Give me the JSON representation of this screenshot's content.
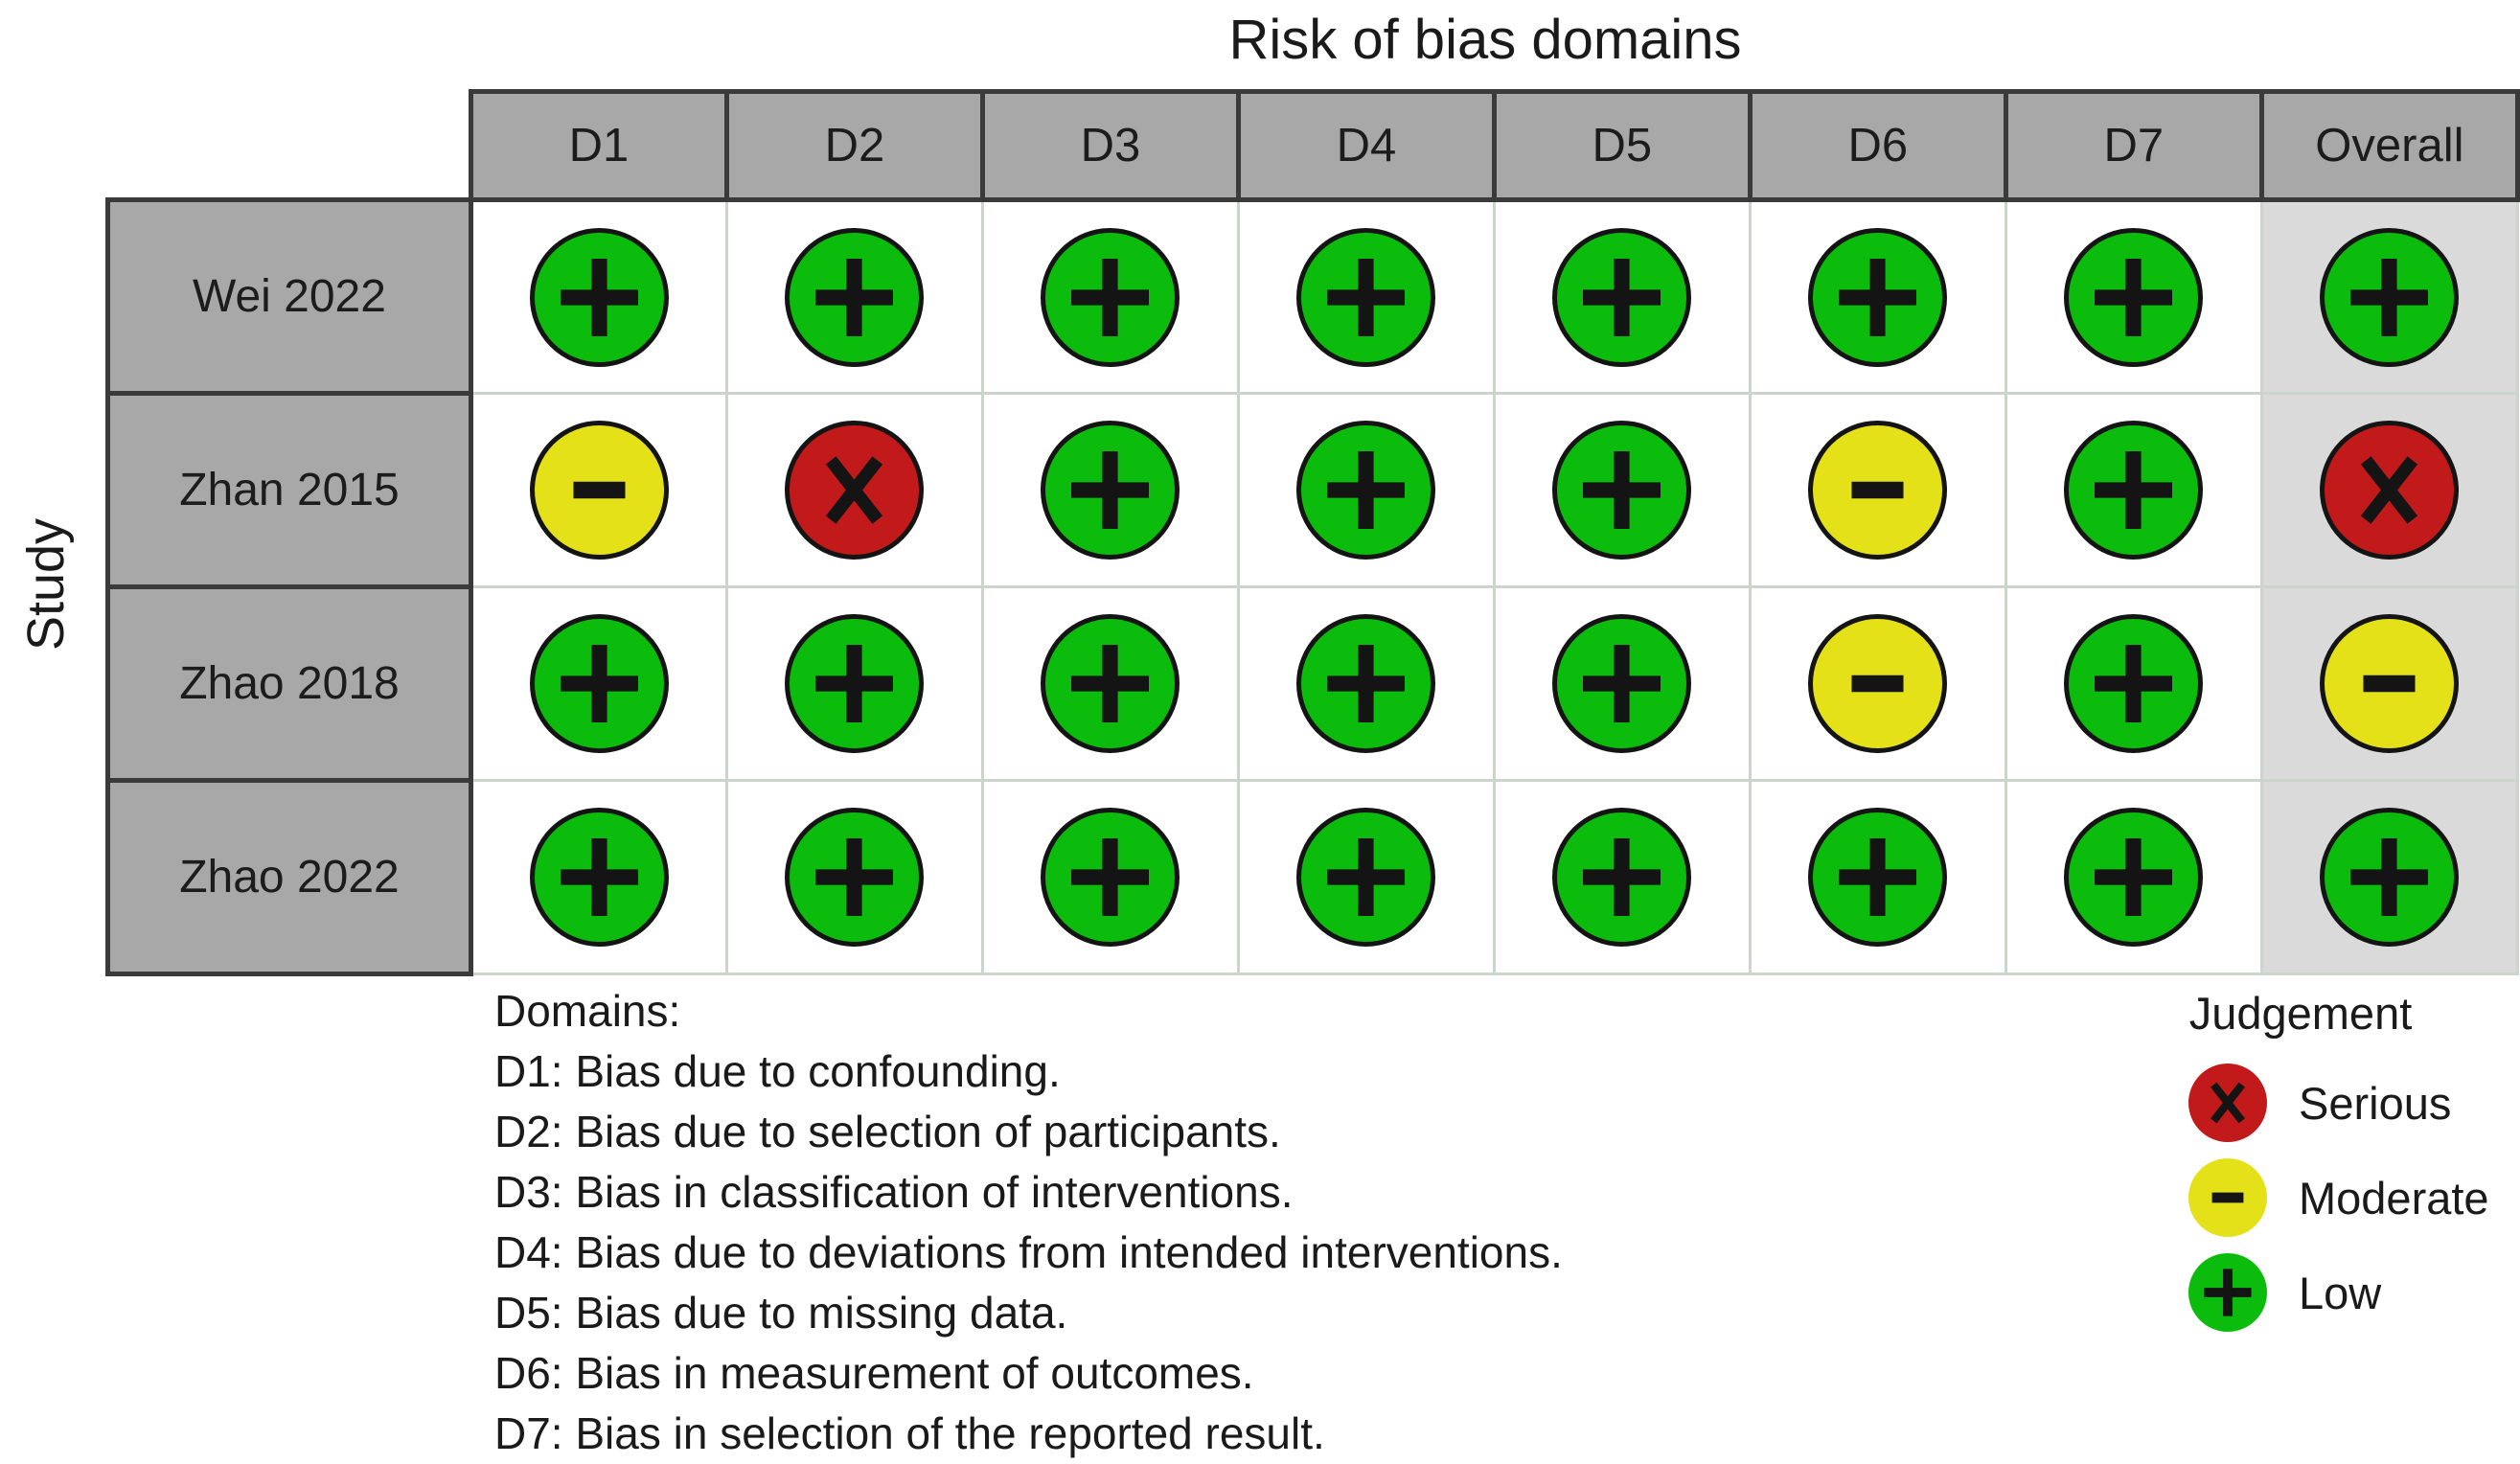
{
  "chart_data": {
    "type": "table",
    "title": "Risk of bias domains",
    "ylabel": "Study",
    "columns": [
      "D1",
      "D2",
      "D3",
      "D4",
      "D5",
      "D6",
      "D7",
      "Overall"
    ],
    "rows": [
      "Wei 2022",
      "Zhan 2015",
      "Zhao 2018",
      "Zhao 2022"
    ],
    "judgements": [
      [
        "low",
        "low",
        "low",
        "low",
        "low",
        "low",
        "low",
        "low"
      ],
      [
        "moderate",
        "serious",
        "low",
        "low",
        "low",
        "moderate",
        "low",
        "serious"
      ],
      [
        "low",
        "low",
        "low",
        "low",
        "low",
        "moderate",
        "low",
        "moderate"
      ],
      [
        "low",
        "low",
        "low",
        "low",
        "low",
        "low",
        "low",
        "low"
      ]
    ],
    "symbols": {
      "low": "+",
      "moderate": "-",
      "serious": "x"
    },
    "palette": {
      "low": "#0cbc0c",
      "moderate": "#e5e119",
      "serious": "#c21a1a",
      "header_bg": "#a8a8a8",
      "overall_col_bg": "#dadada"
    },
    "legend": {
      "title": "Judgement",
      "position": "bottom-right",
      "items": [
        {
          "label": "Serious",
          "judgement": "serious"
        },
        {
          "label": "Moderate",
          "judgement": "moderate"
        },
        {
          "label": "Low",
          "judgement": "low"
        }
      ]
    },
    "footnote": {
      "heading": "Domains:",
      "lines": [
        "D1: Bias due to confounding.",
        "D2: Bias due to selection of participants.",
        "D3: Bias in classification of interventions.",
        "D4: Bias due to deviations from intended interventions.",
        "D5: Bias due to missing data.",
        "D6: Bias in measurement of outcomes.",
        "D7: Bias in selection of the reported result."
      ]
    }
  }
}
